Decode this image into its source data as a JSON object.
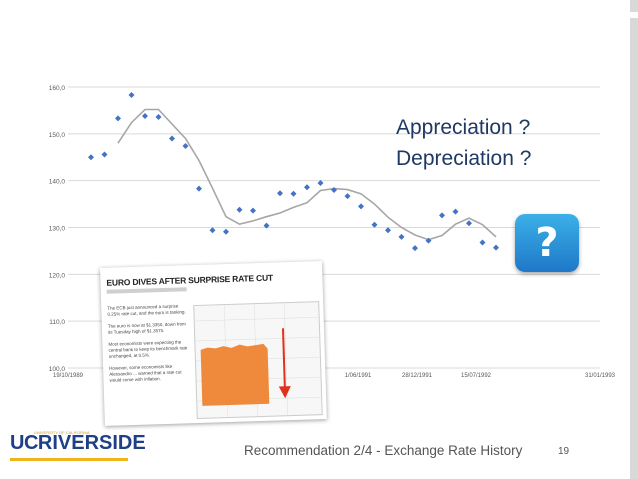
{
  "slide": {
    "footer_text": "Recommendation 2/4 - Exchange Rate History",
    "page_number": "19",
    "overlay_line1": "Appreciation ?",
    "overlay_line2": "Depreciation ?",
    "badge": "?",
    "logo_uc": "UC",
    "logo_riverside": "RIVERSIDE",
    "logo_small": "UNIVERSITY OF CALIFORNIA"
  },
  "news": {
    "title": "EURO DIVES AFTER SURPRISE RATE CUT",
    "para1": "The ECB just announced a surprise 0.25% rate cut, and the euro is tanking.",
    "para2": "The euro is now at $1.3350, down from its Tuesday high of $1.3575.",
    "para3": "Most economists were expecting the central bank to keep its benchmark rate unchanged, at 0.5%.",
    "para4": "However, some economists like Alessandro ... warned that a rate cut would come with inflation."
  },
  "colors": {
    "accent": "#1f3864",
    "marker": "#4472c4",
    "line": "#a6a6a6",
    "badge": "#2a90d8",
    "news_chart_fill": "#ef8a3c",
    "arrow": "#e0301e"
  },
  "chart_data": {
    "type": "scatter",
    "y_ticks": [
      "160,0",
      "150,0",
      "140,0",
      "130,0",
      "120,0",
      "110,0",
      "100,0"
    ],
    "x_ticks": [
      "19/10/1989",
      "1/06/1991",
      "28/12/1991",
      "15/07/1992",
      "31/01/1993"
    ],
    "ylim": [
      100,
      160
    ],
    "grid": true,
    "series": [
      {
        "kind": "points",
        "values": [
          145.0,
          145.6,
          153.3,
          158.3,
          153.8,
          153.6,
          149.0,
          147.4,
          138.3,
          129.4,
          129.1,
          133.8,
          133.6,
          130.4,
          137.3,
          137.2,
          138.6,
          139.5,
          138.0,
          136.7,
          134.5,
          130.6,
          129.4,
          128.0,
          125.6,
          127.2,
          132.6,
          133.4,
          130.9,
          126.8,
          125.7
        ]
      },
      {
        "kind": "moving-average",
        "values": [
          null,
          null,
          148.0,
          152.4,
          155.2,
          155.2,
          152.1,
          149.0,
          144.3,
          138.4,
          132.3,
          130.7,
          131.4,
          132.3,
          133.1,
          134.3,
          135.3,
          137.9,
          138.3,
          138.1,
          137.2,
          135.0,
          132.2,
          130.0,
          128.4,
          127.4,
          128.3,
          130.7,
          132.0,
          130.6,
          128.0
        ]
      }
    ]
  }
}
